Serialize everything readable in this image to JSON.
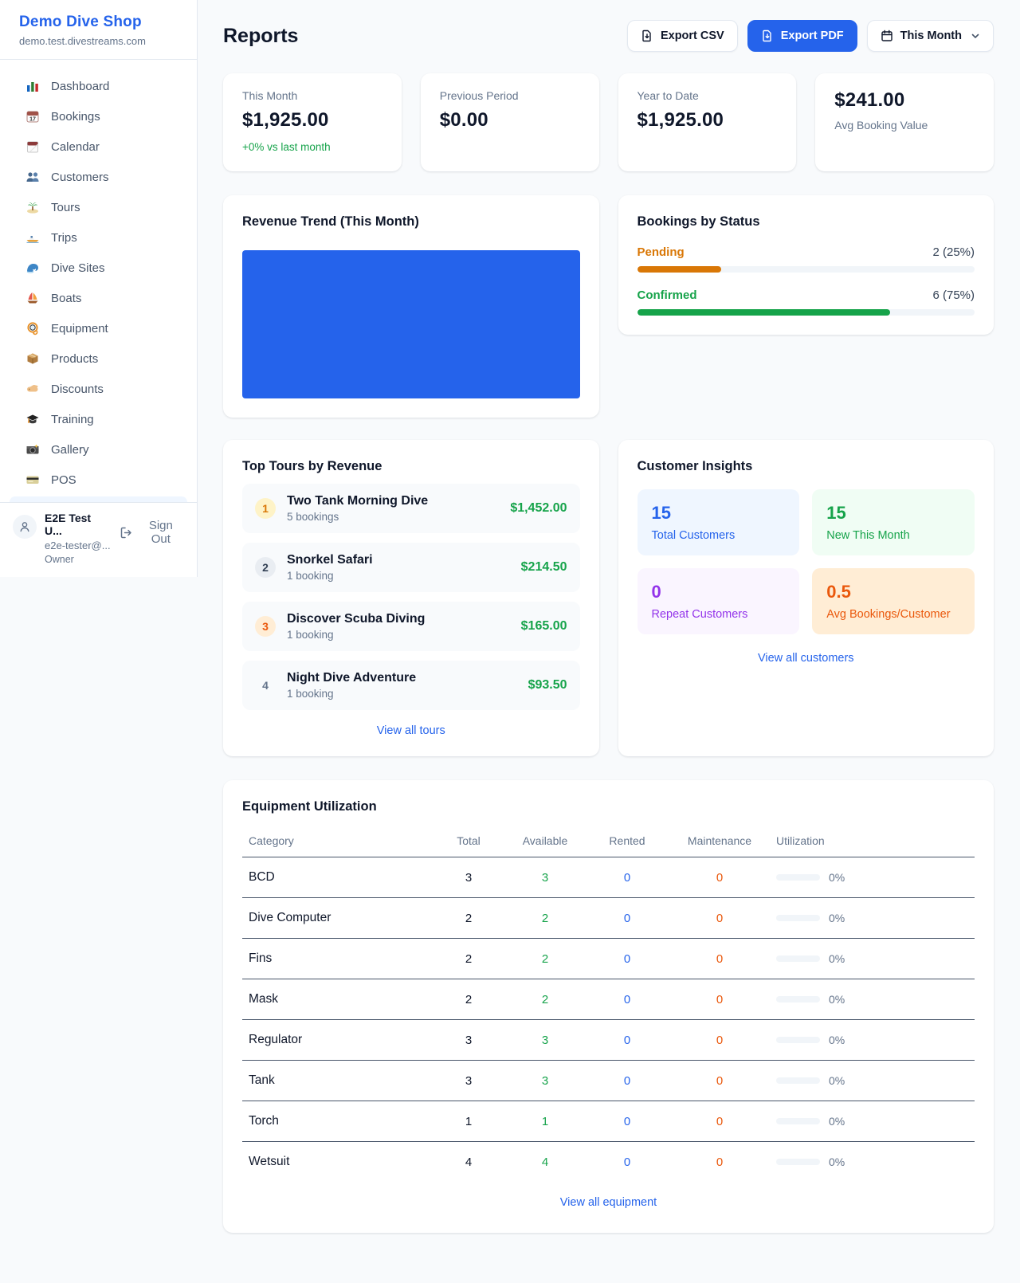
{
  "sidebar": {
    "shop_name": "Demo Dive Shop",
    "shop_domain": "demo.test.divestreams.com",
    "items": [
      {
        "label": "Dashboard",
        "icon": "dashboard-icon"
      },
      {
        "label": "Bookings",
        "icon": "bookings-calendar-icon"
      },
      {
        "label": "Calendar",
        "icon": "calendar-icon"
      },
      {
        "label": "Customers",
        "icon": "customers-icon"
      },
      {
        "label": "Tours",
        "icon": "island-icon"
      },
      {
        "label": "Trips",
        "icon": "speedboat-icon"
      },
      {
        "label": "Dive Sites",
        "icon": "wave-icon"
      },
      {
        "label": "Boats",
        "icon": "sailboat-icon"
      },
      {
        "label": "Equipment",
        "icon": "dive-mask-icon"
      },
      {
        "label": "Products",
        "icon": "package-icon"
      },
      {
        "label": "Discounts",
        "icon": "tag-icon"
      },
      {
        "label": "Training",
        "icon": "graduation-cap-icon"
      },
      {
        "label": "Gallery",
        "icon": "camera-icon"
      },
      {
        "label": "POS",
        "icon": "credit-card-icon"
      }
    ],
    "user": {
      "name": "E2E Test U...",
      "email": "e2e-tester@...",
      "role": "Owner",
      "sign_out_label": "Sign Out"
    }
  },
  "header": {
    "title": "Reports",
    "export_csv_label": "Export CSV",
    "export_pdf_label": "Export PDF",
    "period_label": "This Month"
  },
  "stats": {
    "cards": [
      {
        "label": "This Month",
        "value": "$1,925.00",
        "sub": "+0% vs last month"
      },
      {
        "label": "Previous Period",
        "value": "$0.00"
      },
      {
        "label": "Year to Date",
        "value": "$1,925.00"
      },
      {
        "label": "Avg Booking Value",
        "value": "$241.00"
      }
    ]
  },
  "revenue_trend": {
    "title": "Revenue Trend (This Month)"
  },
  "bookings_by_status": {
    "title": "Bookings by Status",
    "rows": [
      {
        "label": "Pending",
        "value_text": "2 (25%)",
        "percent": 25,
        "color": "#d97706"
      },
      {
        "label": "Confirmed",
        "value_text": "6 (75%)",
        "percent": 75,
        "color": "#16a34a"
      }
    ]
  },
  "top_tours": {
    "title": "Top Tours by Revenue",
    "items": [
      {
        "rank": "1",
        "name": "Two Tank Morning Dive",
        "bookings": "5 bookings",
        "amount": "$1,452.00"
      },
      {
        "rank": "2",
        "name": "Snorkel Safari",
        "bookings": "1 booking",
        "amount": "$214.50"
      },
      {
        "rank": "3",
        "name": "Discover Scuba Diving",
        "bookings": "1 booking",
        "amount": "$165.00"
      },
      {
        "rank": "4",
        "name": "Night Dive Adventure",
        "bookings": "1 booking",
        "amount": "$93.50"
      }
    ],
    "view_all_label": "View all tours"
  },
  "customer_insights": {
    "title": "Customer Insights",
    "tiles": [
      {
        "value": "15",
        "label": "Total Customers",
        "accent": "#2563eb"
      },
      {
        "value": "15",
        "label": "New This Month",
        "accent": "#16a34a"
      },
      {
        "value": "0",
        "label": "Repeat Customers",
        "accent": "#9333ea"
      },
      {
        "value": "0.5",
        "label": "Avg Bookings/Customer",
        "accent": "#ea580c"
      }
    ],
    "view_all_label": "View all customers"
  },
  "equipment": {
    "title": "Equipment Utilization",
    "columns": [
      "Category",
      "Total",
      "Available",
      "Rented",
      "Maintenance",
      "Utilization"
    ],
    "rows": [
      {
        "category": "BCD",
        "total": "3",
        "available": "3",
        "rented": "0",
        "maintenance": "0",
        "utilization": "0%",
        "utilization_percent": 0
      },
      {
        "category": "Dive Computer",
        "total": "2",
        "available": "2",
        "rented": "0",
        "maintenance": "0",
        "utilization": "0%",
        "utilization_percent": 0
      },
      {
        "category": "Fins",
        "total": "2",
        "available": "2",
        "rented": "0",
        "maintenance": "0",
        "utilization": "0%",
        "utilization_percent": 0
      },
      {
        "category": "Mask",
        "total": "2",
        "available": "2",
        "rented": "0",
        "maintenance": "0",
        "utilization": "0%",
        "utilization_percent": 0
      },
      {
        "category": "Regulator",
        "total": "3",
        "available": "3",
        "rented": "0",
        "maintenance": "0",
        "utilization": "0%",
        "utilization_percent": 0
      },
      {
        "category": "Tank",
        "total": "3",
        "available": "3",
        "rented": "0",
        "maintenance": "0",
        "utilization": "0%",
        "utilization_percent": 0
      },
      {
        "category": "Torch",
        "total": "1",
        "available": "1",
        "rented": "0",
        "maintenance": "0",
        "utilization": "0%",
        "utilization_percent": 0
      },
      {
        "category": "Wetsuit",
        "total": "4",
        "available": "4",
        "rented": "0",
        "maintenance": "0",
        "utilization": "0%",
        "utilization_percent": 0
      }
    ],
    "view_all_label": "View all equipment"
  },
  "chart_data": [
    {
      "type": "bar",
      "title": "Revenue Trend (This Month)",
      "categories": [
        "This Month"
      ],
      "values": [
        1925
      ],
      "bar_color": "#2563eb",
      "note": "single bar filling entire plot area"
    },
    {
      "type": "bar",
      "title": "Bookings by Status",
      "categories": [
        "Pending",
        "Confirmed"
      ],
      "values": [
        2,
        6
      ],
      "percentages": [
        25,
        75
      ],
      "colors": [
        "#d97706",
        "#16a34a"
      ]
    }
  ],
  "colors": {
    "accent_blue": "#2563eb",
    "green": "#16a34a",
    "amber": "#d97706",
    "orange": "#ea580c",
    "purple": "#9333ea",
    "page_bg": "#f8fafc"
  }
}
